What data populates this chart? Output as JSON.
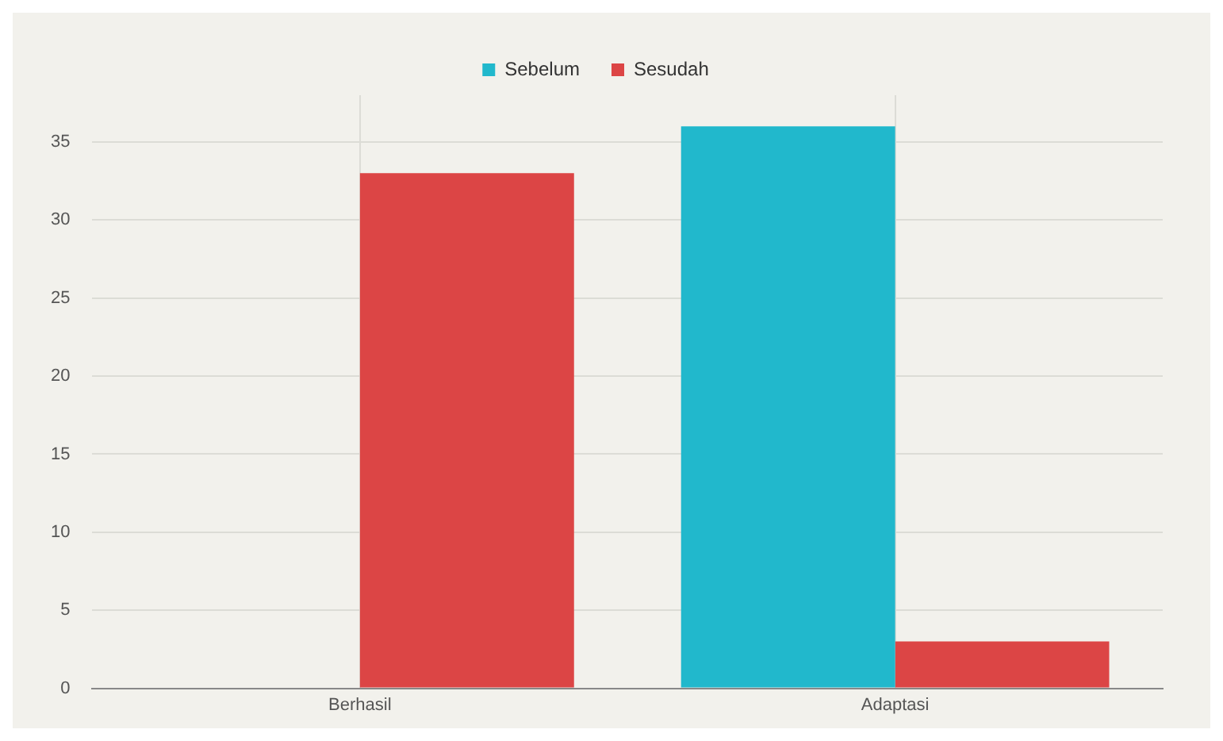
{
  "chart_data": {
    "type": "bar",
    "categories": [
      "Berhasil",
      "Adaptasi"
    ],
    "series": [
      {
        "name": "Sebelum",
        "color": "#21b8cc",
        "values": [
          0,
          36
        ]
      },
      {
        "name": "Sesudah",
        "color": "#dc4545",
        "values": [
          33,
          3
        ]
      }
    ],
    "ylim": [
      0,
      38
    ],
    "yticks": [
      0,
      5,
      10,
      15,
      20,
      25,
      30,
      35
    ],
    "grid": true,
    "legend": "top"
  }
}
